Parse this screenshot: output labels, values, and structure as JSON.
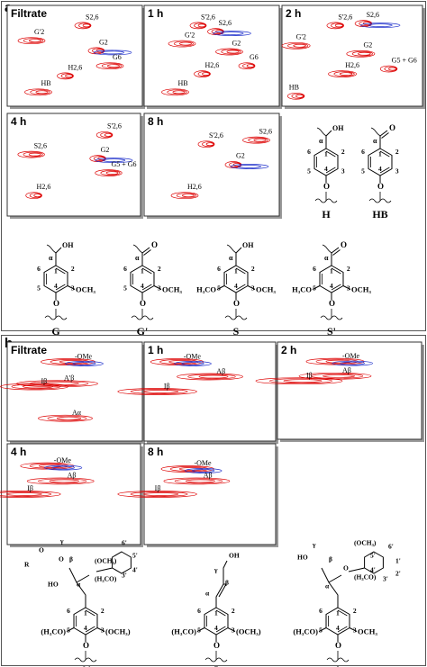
{
  "panels": [
    {
      "label": "a",
      "spectra": [
        {
          "title": "Filtrate",
          "annotations": [
            "S2,6",
            "G'2",
            "G2",
            "G6",
            "H2,6",
            "HB"
          ]
        },
        {
          "title": "1 h",
          "annotations": [
            "S'2,6",
            "G'2",
            "S2,6",
            "G2",
            "G6",
            "HB",
            "H2,6"
          ]
        },
        {
          "title": "2 h",
          "annotations": [
            "S'2,6",
            "G'2",
            "S2,6",
            "G2",
            "G5 + G6",
            "H2,6",
            "HB"
          ]
        },
        {
          "title": "4 h",
          "annotations": [
            "S'2,6",
            "S2,6",
            "G2",
            "G5 + G6",
            "H2,6"
          ]
        },
        {
          "title": "8 h",
          "annotations": [
            "S'2,6",
            "S2,6",
            "G2",
            "H2,6"
          ]
        }
      ],
      "structures": [
        {
          "name": "H",
          "top": "OH",
          "alpha": "α",
          "ring": [
            "1",
            "2",
            "3",
            "4",
            "5",
            "6"
          ],
          "bottom": "O"
        },
        {
          "name": "HB",
          "top": "O",
          "alpha": "α",
          "ring": [
            "1",
            "2",
            "3",
            "4",
            "5",
            "6"
          ],
          "bottom": "O"
        },
        {
          "name": "G",
          "top": "OH",
          "alpha": "α",
          "ring": [
            "1",
            "2",
            "3",
            "4",
            "5",
            "6"
          ],
          "bottom": "O",
          "r3": "OCH₃"
        },
        {
          "name": "G'",
          "top": "O",
          "alpha": "α",
          "ring": [
            "1",
            "2",
            "3",
            "4",
            "5",
            "6"
          ],
          "bottom": "O",
          "r3": "OCH₃"
        },
        {
          "name": "S",
          "top": "OH",
          "alpha": "α",
          "ring": [
            "1",
            "2",
            "3",
            "4",
            "5",
            "6"
          ],
          "bottom": "O",
          "r3": "OCH₃",
          "r5": "H₃CO"
        },
        {
          "name": "S'",
          "top": "O",
          "alpha": "α",
          "ring": [
            "1",
            "2",
            "3",
            "4",
            "5",
            "6"
          ],
          "bottom": "O",
          "r3": "OCH₃",
          "r5": "H₃CO"
        }
      ]
    },
    {
      "label": "b",
      "spectra": [
        {
          "title": "Filtrate",
          "annotations": [
            "-OMe",
            "Iβ",
            "A'β",
            "Aα"
          ]
        },
        {
          "title": "1 h",
          "annotations": [
            "-OMe",
            "Aβ",
            "Iβ"
          ]
        },
        {
          "title": "2 h",
          "annotations": [
            "-OMe",
            "Aβ",
            "Iβ"
          ]
        },
        {
          "title": "4 h",
          "annotations": [
            "-OMe",
            "Aβ",
            "Iβ"
          ]
        },
        {
          "title": "8 h",
          "annotations": [
            "-OMe",
            "Aβ",
            "Iβ"
          ]
        }
      ],
      "structures": [
        {
          "name": "A'",
          "ring": [
            "1",
            "2",
            "3",
            "4",
            "5",
            "6"
          ],
          "bottom": "O",
          "r3": "(OCH₃)",
          "r5": "(H₃CO)",
          "extra": [
            "O",
            "R",
            "O",
            "γ",
            "β",
            "HO",
            "α",
            "(OCH₃)",
            "6'",
            "5'",
            "4'",
            "3'",
            "(H₃CO)"
          ]
        },
        {
          "name": "I",
          "ring": [
            "1",
            "2",
            "3",
            "4",
            "5",
            "6"
          ],
          "bottom": "O",
          "r3": "(OCH₃)",
          "r5": "(H₃CO)",
          "extra": [
            "α",
            "β",
            "γ",
            "OH"
          ]
        },
        {
          "name": "A",
          "ring": [
            "1",
            "2",
            "3",
            "4",
            "5",
            "6"
          ],
          "bottom": "O",
          "r3": "OCH₃",
          "r5": "(H₃CO)",
          "extra": [
            "HO",
            "γ",
            "β",
            "α",
            "O",
            "(OCH₃)",
            "6'",
            "1'",
            "2'",
            "3'",
            "4'",
            "5'",
            "(H₃CO)"
          ]
        }
      ]
    }
  ]
}
